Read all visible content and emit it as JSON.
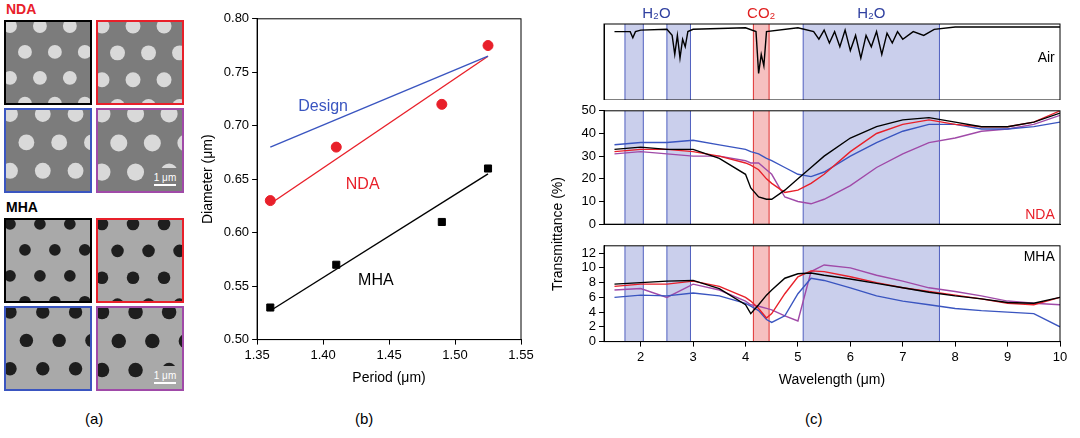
{
  "panel_letters": [
    "(a)",
    "(b)",
    "(c)"
  ],
  "panel_a": {
    "groups": [
      {
        "label": "NDA",
        "color": "#e8202a",
        "scale_bar": "1 μm"
      },
      {
        "label": "MHA",
        "color": "#000000",
        "scale_bar": "1 μm"
      }
    ]
  },
  "panel_c": {
    "ylabel": "Transmittance (%)",
    "bands": [
      {
        "x0": 1.7,
        "x1": 2.05,
        "color": "#5060c0"
      },
      {
        "x0": 2.5,
        "x1": 2.95,
        "color": "#5060c0"
      },
      {
        "x0": 4.15,
        "x1": 4.45,
        "color": "#e03030"
      },
      {
        "x0": 5.1,
        "x1": 7.7,
        "color": "#5060c0"
      }
    ],
    "band_labels": [
      {
        "text": "H₂O",
        "x": 2.3,
        "color": "#3040a0"
      },
      {
        "text": "CO₂",
        "x": 4.3,
        "color": "#e02020"
      },
      {
        "text": "H₂O",
        "x": 6.4,
        "color": "#3040a0"
      }
    ]
  },
  "chart_data": [
    {
      "type": "scatter",
      "xlabel": "Period (μm)",
      "ylabel": "Diameter (μm)",
      "grid": false,
      "xlim": [
        1.35,
        1.55
      ],
      "xticks": [
        1.35,
        {
          "value": 1.4,
          "label": "1.40"
        },
        1.45,
        {
          "value": 1.5,
          "label": "1.50"
        },
        1.55
      ],
      "ylim": [
        0.5,
        0.8
      ],
      "yticks": [
        {
          "value": 0.5,
          "label": "0.50"
        },
        0.55,
        {
          "value": 0.6,
          "label": "0.60"
        },
        0.65,
        {
          "value": 0.7,
          "label": "0.70"
        },
        0.75,
        {
          "value": 0.8,
          "label": "0.80"
        }
      ],
      "series": [
        {
          "type": "line",
          "color": "#3a55c0",
          "x": [
            1.36,
            1.525
          ],
          "values": [
            0.68,
            0.765
          ]
        },
        {
          "type": "scatter",
          "marker": "circle",
          "color": "#e8202a",
          "x": [
            1.36,
            1.41,
            1.49,
            1.525
          ],
          "values": [
            0.63,
            0.68,
            0.72,
            0.775
          ]
        },
        {
          "type": "line",
          "color": "#e8202a",
          "x": [
            1.36,
            1.525
          ],
          "values": [
            0.627,
            0.765
          ]
        },
        {
          "type": "scatter",
          "marker": "square",
          "color": "#000000",
          "x": [
            1.36,
            1.41,
            1.49,
            1.525
          ],
          "values": [
            0.53,
            0.57,
            0.61,
            0.66
          ]
        },
        {
          "type": "line",
          "color": "#000000",
          "x": [
            1.36,
            1.525
          ],
          "values": [
            0.527,
            0.655
          ]
        }
      ],
      "annotations": [
        {
          "text": "Design",
          "x": 1.4,
          "y": 0.718,
          "color": "#3a55c0"
        },
        {
          "text": "NDA",
          "x": 1.43,
          "y": 0.645,
          "color": "#e8202a"
        },
        {
          "text": "MHA",
          "x": 1.44,
          "y": 0.555,
          "color": "#000000"
        }
      ]
    },
    {
      "type": "line",
      "xlim": [
        1.3,
        10
      ],
      "ylim": [
        0,
        1
      ],
      "tick_labels": false,
      "grid": false,
      "x": [
        1.5,
        1.8,
        1.85,
        1.9,
        2.0,
        2.5,
        2.6,
        2.65,
        2.7,
        2.75,
        2.8,
        2.85,
        2.9,
        3.0,
        4.0,
        4.2,
        4.25,
        4.3,
        4.35,
        4.4,
        5.0,
        5.3,
        5.4,
        5.5,
        5.6,
        5.7,
        5.8,
        5.9,
        6.0,
        6.1,
        6.2,
        6.3,
        6.4,
        6.5,
        6.6,
        6.7,
        6.8,
        6.9,
        7.0,
        7.2,
        7.4,
        7.6,
        8.0,
        10.0
      ],
      "series": [
        {
          "color": "#000000",
          "values": [
            0.9,
            0.9,
            0.82,
            0.9,
            0.92,
            0.93,
            0.85,
            0.6,
            0.85,
            0.55,
            0.8,
            0.7,
            0.9,
            0.93,
            0.95,
            0.9,
            0.35,
            0.6,
            0.45,
            0.9,
            0.95,
            0.9,
            0.8,
            0.92,
            0.75,
            0.9,
            0.7,
            0.92,
            0.65,
            0.85,
            0.55,
            0.85,
            0.7,
            0.9,
            0.6,
            0.88,
            0.75,
            0.9,
            0.8,
            0.9,
            0.85,
            0.93,
            0.96,
            0.96
          ]
        }
      ],
      "annotations": [
        {
          "text": "Air",
          "x": 9.9,
          "y": 0.55,
          "color": "#000000"
        }
      ]
    },
    {
      "type": "line",
      "xlim": [
        1.3,
        10
      ],
      "ylim": [
        0,
        50
      ],
      "yticks": [
        0,
        10,
        20,
        30,
        40,
        50
      ],
      "tick_labels": "y",
      "grid": false,
      "x": [
        1.5,
        2,
        2.5,
        3,
        3.5,
        4,
        4.1,
        4.25,
        4.4,
        4.5,
        4.75,
        5,
        5.25,
        5.5,
        6,
        6.5,
        7,
        7.5,
        8,
        8.5,
        9,
        9.5,
        10
      ],
      "series": [
        {
          "color": "#000000",
          "values": [
            33,
            34,
            33,
            33,
            29,
            22,
            16,
            12,
            11,
            11,
            15,
            20,
            25,
            30,
            38,
            43,
            46,
            47,
            45,
            43,
            43,
            45,
            49
          ]
        },
        {
          "color": "#e8202a",
          "values": [
            32,
            33,
            33,
            32,
            30,
            27,
            26,
            24,
            20,
            18,
            14,
            15,
            18,
            22,
            32,
            40,
            44,
            46,
            44,
            43,
            43,
            45,
            50
          ]
        },
        {
          "color": "#3a55c0",
          "values": [
            35,
            36,
            36,
            37,
            35,
            33,
            32,
            31,
            29,
            28,
            25,
            22,
            21,
            23,
            30,
            36,
            41,
            44,
            44,
            42,
            42,
            43,
            45
          ]
        },
        {
          "color": "#a04aa8",
          "values": [
            31,
            32,
            31,
            30,
            30,
            28,
            27,
            27,
            24,
            22,
            12,
            10,
            9,
            11,
            17,
            25,
            31,
            36,
            38,
            41,
            42,
            44,
            48
          ]
        }
      ],
      "annotations": [
        {
          "text": "NDA",
          "x": 9.9,
          "y": 4,
          "color": "#e8202a"
        }
      ]
    },
    {
      "type": "line",
      "xlabel": "Wavelength (μm)",
      "xlim": [
        1.3,
        10
      ],
      "xticks": [
        2,
        3,
        4,
        5,
        6,
        7,
        8,
        9,
        10
      ],
      "ylim": [
        0,
        13
      ],
      "yticks": [
        0,
        2,
        4,
        6,
        8,
        10,
        12
      ],
      "grid": false,
      "x": [
        1.5,
        2,
        2.5,
        3,
        3.5,
        4,
        4.1,
        4.25,
        4.4,
        4.5,
        4.75,
        5,
        5.25,
        5.5,
        6,
        6.5,
        7,
        7.5,
        8,
        8.5,
        9,
        9.5,
        10
      ],
      "series": [
        {
          "color": "#000000",
          "values": [
            7.8,
            8,
            8.2,
            8.3,
            7.2,
            5,
            3.8,
            5,
            6.3,
            7,
            8.6,
            9.2,
            9.3,
            9,
            8.5,
            7.9,
            7.3,
            6.7,
            6.2,
            5.8,
            5.3,
            5.2,
            6
          ]
        },
        {
          "color": "#e8202a",
          "values": [
            7.5,
            7.8,
            7.8,
            8.2,
            7.5,
            6,
            5.5,
            4.5,
            3.2,
            3.8,
            6.5,
            8.8,
            9.6,
            9.5,
            8.8,
            8,
            7.3,
            6.8,
            6.3,
            5.8,
            5.2,
            5,
            6
          ]
        },
        {
          "color": "#3a55c0",
          "values": [
            6,
            6.3,
            6.2,
            6.6,
            6.2,
            5.2,
            4.8,
            4.2,
            3,
            2.6,
            3.5,
            6.5,
            8.6,
            8.3,
            7.3,
            6.2,
            5.5,
            5,
            4.5,
            4.2,
            4,
            3.8,
            2
          ]
        },
        {
          "color": "#a04aa8",
          "values": [
            7,
            7.2,
            6,
            7.8,
            7,
            5.5,
            5,
            4.8,
            4.5,
            4.3,
            3.5,
            2.8,
            9.5,
            10.4,
            10,
            9,
            8.2,
            7.3,
            6.8,
            6.2,
            5.5,
            5.2,
            5
          ]
        }
      ],
      "annotations": [
        {
          "text": "MHA",
          "x": 9.9,
          "y": 11.5,
          "color": "#000000"
        }
      ]
    }
  ]
}
